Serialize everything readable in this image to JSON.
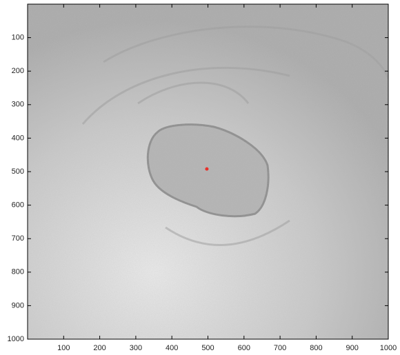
{
  "chart_data": {
    "type": "scatter",
    "series": [
      {
        "color": "#e8302a",
        "x": [
          497
        ],
        "y": [
          492
        ]
      }
    ],
    "xlim": [
      0,
      1000
    ],
    "ylim": [
      0,
      1000
    ],
    "y_reversed": true,
    "xticks": [
      100,
      200,
      300,
      400,
      500,
      600,
      700,
      800,
      900,
      1000
    ],
    "yticks": [
      100,
      200,
      300,
      400,
      500,
      600,
      700,
      800,
      900,
      1000
    ]
  }
}
